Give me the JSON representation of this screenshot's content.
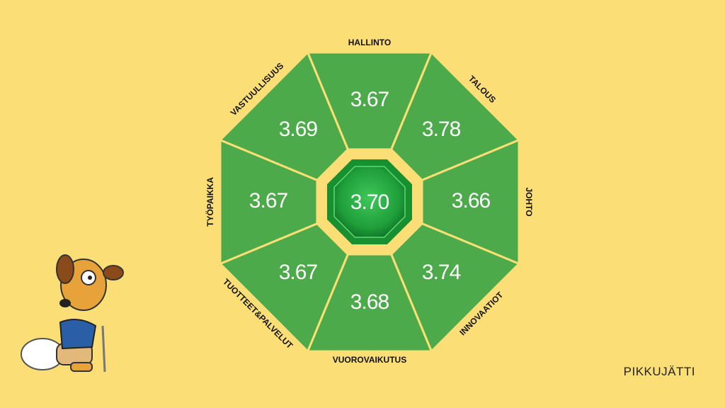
{
  "segments": [
    {
      "label": "HALLINTO",
      "value": "3.67"
    },
    {
      "label": "TALOUS",
      "value": "3.78"
    },
    {
      "label": "JOHTO",
      "value": "3.66"
    },
    {
      "label": "INNOVAATIOT",
      "value": "3.74"
    },
    {
      "label": "VUOROVAIKUTUS",
      "value": "3.68"
    },
    {
      "label": "TUOTTEET&PALVELUT",
      "value": "3.67"
    },
    {
      "label": "TYÖPAIKKA",
      "value": "3.67"
    },
    {
      "label": "VASTUULLISUUS",
      "value": "3.69"
    }
  ],
  "center": {
    "value": "3.70"
  },
  "brand": "PIKKUJÄTTI"
}
